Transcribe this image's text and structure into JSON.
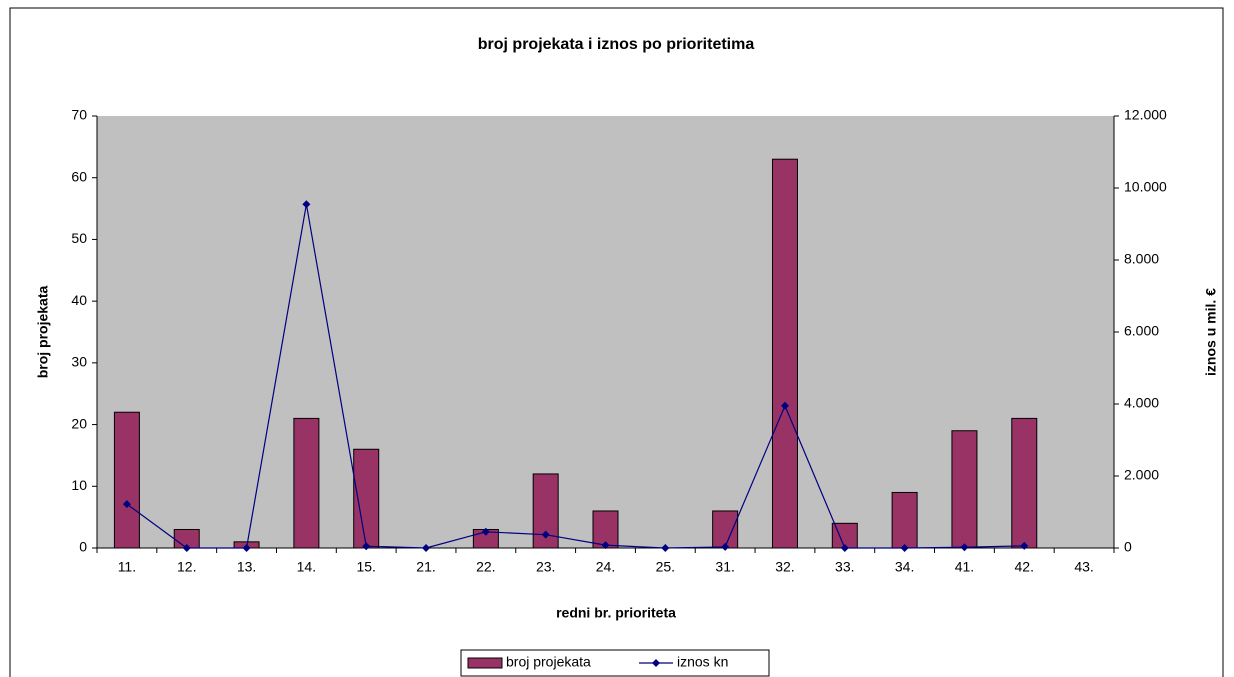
{
  "chart_data": {
    "type": "bar_line",
    "title": "broj projekata i iznos po prioritetima",
    "categories": [
      "11.",
      "12.",
      "13.",
      "14.",
      "15.",
      "21.",
      "22.",
      "23.",
      "24.",
      "25.",
      "31.",
      "32.",
      "33.",
      "34.",
      "41.",
      "42.",
      "43."
    ],
    "series": [
      {
        "name": "broj projekata",
        "type": "bar",
        "color": "#993366",
        "values": [
          22,
          3,
          1,
          21,
          16,
          0,
          3,
          12,
          6,
          0,
          6,
          63,
          4,
          9,
          19,
          21,
          null
        ]
      },
      {
        "name": "iznos kn",
        "type": "line",
        "axis": "y2",
        "color": "#000080",
        "values": [
          1220,
          0,
          0,
          9550,
          50,
          0,
          450,
          370,
          80,
          0,
          30,
          3950,
          0,
          0,
          20,
          60,
          null
        ]
      }
    ],
    "xlabel": "redni br. prioriteta",
    "ylabel": "broj projekata",
    "y2label": "iznos u mil. €",
    "ylim": [
      0,
      70
    ],
    "yticks": [
      0,
      10,
      20,
      30,
      40,
      50,
      60,
      70
    ],
    "y2lim": [
      0,
      12000
    ],
    "y2ticks": [
      0,
      {
        "value": 2000,
        "label": "2.000"
      },
      {
        "value": 4000,
        "label": "4.000"
      },
      {
        "value": 6000,
        "label": "6.000"
      },
      {
        "value": 8000,
        "label": "8.000"
      },
      {
        "value": 10000,
        "label": "10.000"
      },
      {
        "value": 12000,
        "label": "12.000"
      }
    ],
    "grid": false,
    "legend": "bottom"
  }
}
